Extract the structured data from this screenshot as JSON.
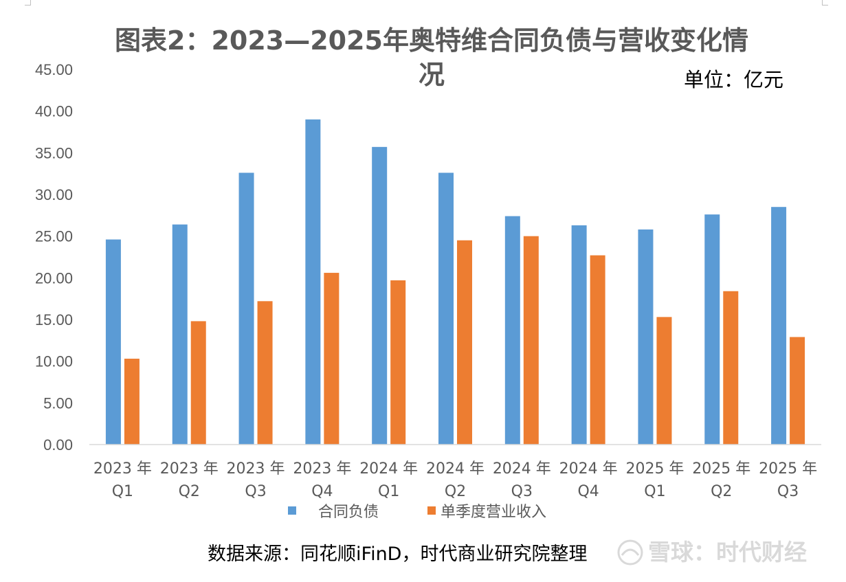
{
  "chart_data": {
    "type": "bar",
    "title": "图表2：2023—2025年奥特维合同负债与营收变化情况",
    "title_lines": [
      "图表2：2023—2025年奥特维合同负债与营收变化情",
      "况"
    ],
    "unit": "单位：亿元",
    "categories": [
      [
        "2023 年",
        "Q1"
      ],
      [
        "2023 年",
        "Q2"
      ],
      [
        "2023 年",
        "Q3"
      ],
      [
        "2023 年",
        "Q4"
      ],
      [
        "2024 年",
        "Q1"
      ],
      [
        "2024 年",
        "Q2"
      ],
      [
        "2024 年",
        "Q3"
      ],
      [
        "2024 年",
        "Q4"
      ],
      [
        "2025 年",
        "Q1"
      ],
      [
        "2025 年",
        "Q2"
      ],
      [
        "2025 年",
        "Q3"
      ]
    ],
    "series": [
      {
        "name": "合同负债",
        "color": "#5b9bd5",
        "values": [
          24.6,
          26.4,
          32.6,
          39.0,
          35.7,
          32.6,
          27.4,
          26.3,
          25.8,
          27.6,
          28.5
        ]
      },
      {
        "name": "单季度营业收入",
        "color": "#ed7d31",
        "values": [
          10.3,
          14.8,
          17.2,
          20.6,
          19.7,
          24.5,
          25.0,
          22.7,
          15.3,
          18.4,
          12.9
        ]
      }
    ],
    "ylim": [
      0,
      45
    ],
    "yticks": [
      "0.00",
      "5.00",
      "10.00",
      "15.00",
      "20.00",
      "25.00",
      "30.00",
      "35.00",
      "40.00",
      "45.00"
    ],
    "grid": false,
    "legend_position": "bottom"
  },
  "source": "数据来源：同花顺iFinD，时代商业研究院整理",
  "watermark": "雪球：时代财经",
  "colors": {
    "text": "#595959",
    "axis": "#d9d9d9"
  }
}
